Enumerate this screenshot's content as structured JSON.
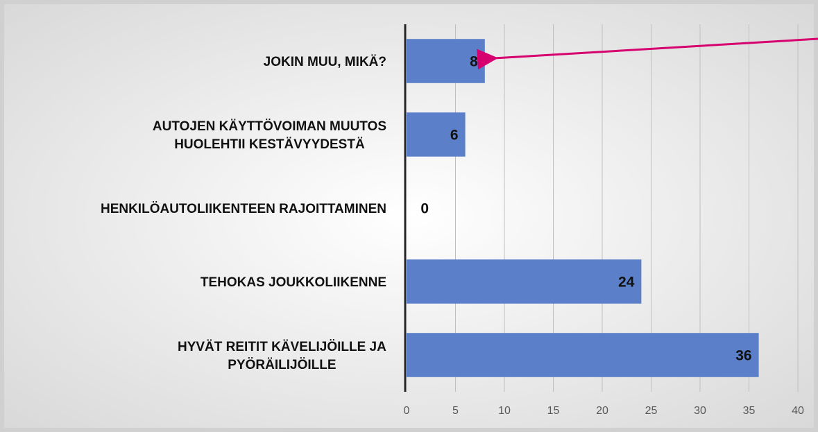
{
  "chart_data": {
    "type": "bar",
    "orientation": "horizontal",
    "categories": [
      "JOKIN MUU, MIKÄ?",
      "AUTOJEN KÄYTTÖVOIMAN MUUTOS HUOLEHTII KESTÄVYYDESTÄ",
      "HENKILÖAUTOLIIKENTEEN RAJOITTAMINEN",
      "TEHOKAS JOUKKOLIIKENNE",
      "HYVÄT REITIT KÄVELIJÖILLE JA PYÖRÄILIJÖILLE"
    ],
    "values": [
      8,
      6,
      0,
      24,
      36
    ],
    "color": "#5b80c9",
    "xlim": [
      0,
      40
    ],
    "xticks": [
      0,
      5,
      10,
      15,
      20,
      25,
      30,
      35,
      40
    ],
    "grid": true
  }
}
